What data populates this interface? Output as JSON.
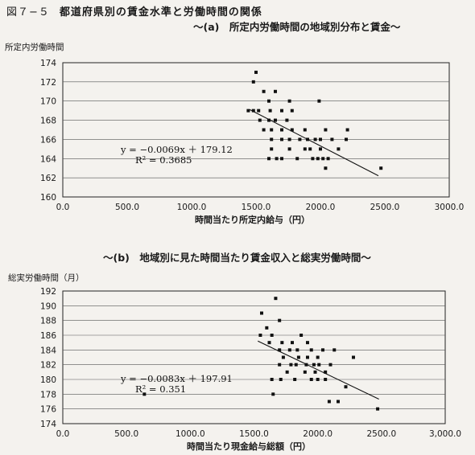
{
  "figure": {
    "number": "図７−５",
    "title": "都道府県別の賃金水準と労働時間の関係"
  },
  "chart_data": [
    {
      "type": "scatter",
      "subtitle": "〜(a)　所定内労働時間の地域別分布と賃金〜",
      "ylabel": "所定内労働時間",
      "xlabel": "時間当たり所定内給与（円）",
      "xlim": [
        0,
        3000
      ],
      "ylim": [
        160,
        174
      ],
      "xticks": [
        "0.0",
        "500.0",
        "1000.0",
        "1500.0",
        "2000.0",
        "2500.0",
        "3000.0"
      ],
      "yticks": [
        "160",
        "162",
        "164",
        "166",
        "168",
        "170",
        "172",
        "174"
      ],
      "equation": "y = −0.0069x ＋ 179.12",
      "r2_label": "R² = 0.3685",
      "trendline": {
        "slope": -0.0069,
        "intercept": 179.12,
        "x": [
          1450,
          2450
        ]
      },
      "grid": "horizontal",
      "points": [
        [
          1500,
          173
        ],
        [
          1480,
          172
        ],
        [
          1560,
          171
        ],
        [
          1650,
          171
        ],
        [
          1600,
          170
        ],
        [
          1760,
          170
        ],
        [
          1990,
          170
        ],
        [
          1440,
          169
        ],
        [
          1480,
          169
        ],
        [
          1520,
          169
        ],
        [
          1610,
          169
        ],
        [
          1700,
          169
        ],
        [
          1780,
          169
        ],
        [
          1530,
          168
        ],
        [
          1600,
          168
        ],
        [
          1650,
          168
        ],
        [
          1740,
          168
        ],
        [
          1560,
          167
        ],
        [
          1620,
          167
        ],
        [
          1700,
          167
        ],
        [
          1780,
          167
        ],
        [
          1880,
          167
        ],
        [
          2040,
          167
        ],
        [
          2210,
          167
        ],
        [
          1620,
          166
        ],
        [
          1700,
          166
        ],
        [
          1760,
          166
        ],
        [
          1840,
          166
        ],
        [
          1900,
          166
        ],
        [
          1960,
          166
        ],
        [
          2000,
          166
        ],
        [
          2090,
          166
        ],
        [
          2200,
          166
        ],
        [
          1620,
          165
        ],
        [
          1760,
          165
        ],
        [
          1880,
          165
        ],
        [
          1920,
          165
        ],
        [
          2000,
          165
        ],
        [
          2140,
          165
        ],
        [
          1600,
          164
        ],
        [
          1660,
          164
        ],
        [
          1700,
          164
        ],
        [
          1820,
          164
        ],
        [
          1940,
          164
        ],
        [
          1980,
          164
        ],
        [
          2020,
          164
        ],
        [
          2060,
          164
        ],
        [
          2040,
          163
        ],
        [
          2470,
          163
        ]
      ]
    },
    {
      "type": "scatter",
      "subtitle": "〜(b)　地域別に見た時間当たり賃金収入と総実労働時間〜",
      "ylabel": "総実労働時間（月）",
      "xlabel": "時間当たり現金給与総額（円）",
      "xlim": [
        0,
        3000
      ],
      "ylim": [
        174,
        192
      ],
      "xticks": [
        "0.0",
        "500.0",
        "1000.0",
        "1500.0",
        "2000.0",
        "2500.0",
        "3,000.0"
      ],
      "yticks": [
        "174",
        "176",
        "178",
        "180",
        "182",
        "184",
        "186",
        "188",
        "190",
        "192"
      ],
      "equation": "y = −0.0083x ＋ 197.91",
      "r2_label": "R² = 0.351",
      "trendline": {
        "slope": -0.0083,
        "intercept": 197.91,
        "x": [
          1530,
          2480
        ]
      },
      "grid": "horizontal",
      "points": [
        [
          1670,
          191
        ],
        [
          1560,
          189
        ],
        [
          1700,
          188
        ],
        [
          1600,
          187
        ],
        [
          1550,
          186
        ],
        [
          1640,
          186
        ],
        [
          1870,
          186
        ],
        [
          1620,
          185
        ],
        [
          1720,
          185
        ],
        [
          1800,
          185
        ],
        [
          1920,
          185
        ],
        [
          1700,
          184
        ],
        [
          1780,
          184
        ],
        [
          1840,
          184
        ],
        [
          1950,
          184
        ],
        [
          2040,
          184
        ],
        [
          2130,
          184
        ],
        [
          1730,
          183
        ],
        [
          1850,
          183
        ],
        [
          1920,
          183
        ],
        [
          2000,
          183
        ],
        [
          2280,
          183
        ],
        [
          1700,
          182
        ],
        [
          1790,
          182
        ],
        [
          1830,
          182
        ],
        [
          1910,
          182
        ],
        [
          1970,
          182
        ],
        [
          2010,
          182
        ],
        [
          2100,
          182
        ],
        [
          1760,
          181
        ],
        [
          1900,
          181
        ],
        [
          1980,
          181
        ],
        [
          2060,
          181
        ],
        [
          1640,
          180
        ],
        [
          1710,
          180
        ],
        [
          1820,
          180
        ],
        [
          1950,
          180
        ],
        [
          2000,
          180
        ],
        [
          2060,
          180
        ],
        [
          2220,
          179
        ],
        [
          1650,
          178
        ],
        [
          640,
          178
        ],
        [
          2090,
          177
        ],
        [
          2160,
          177
        ],
        [
          2470,
          176
        ]
      ]
    }
  ]
}
